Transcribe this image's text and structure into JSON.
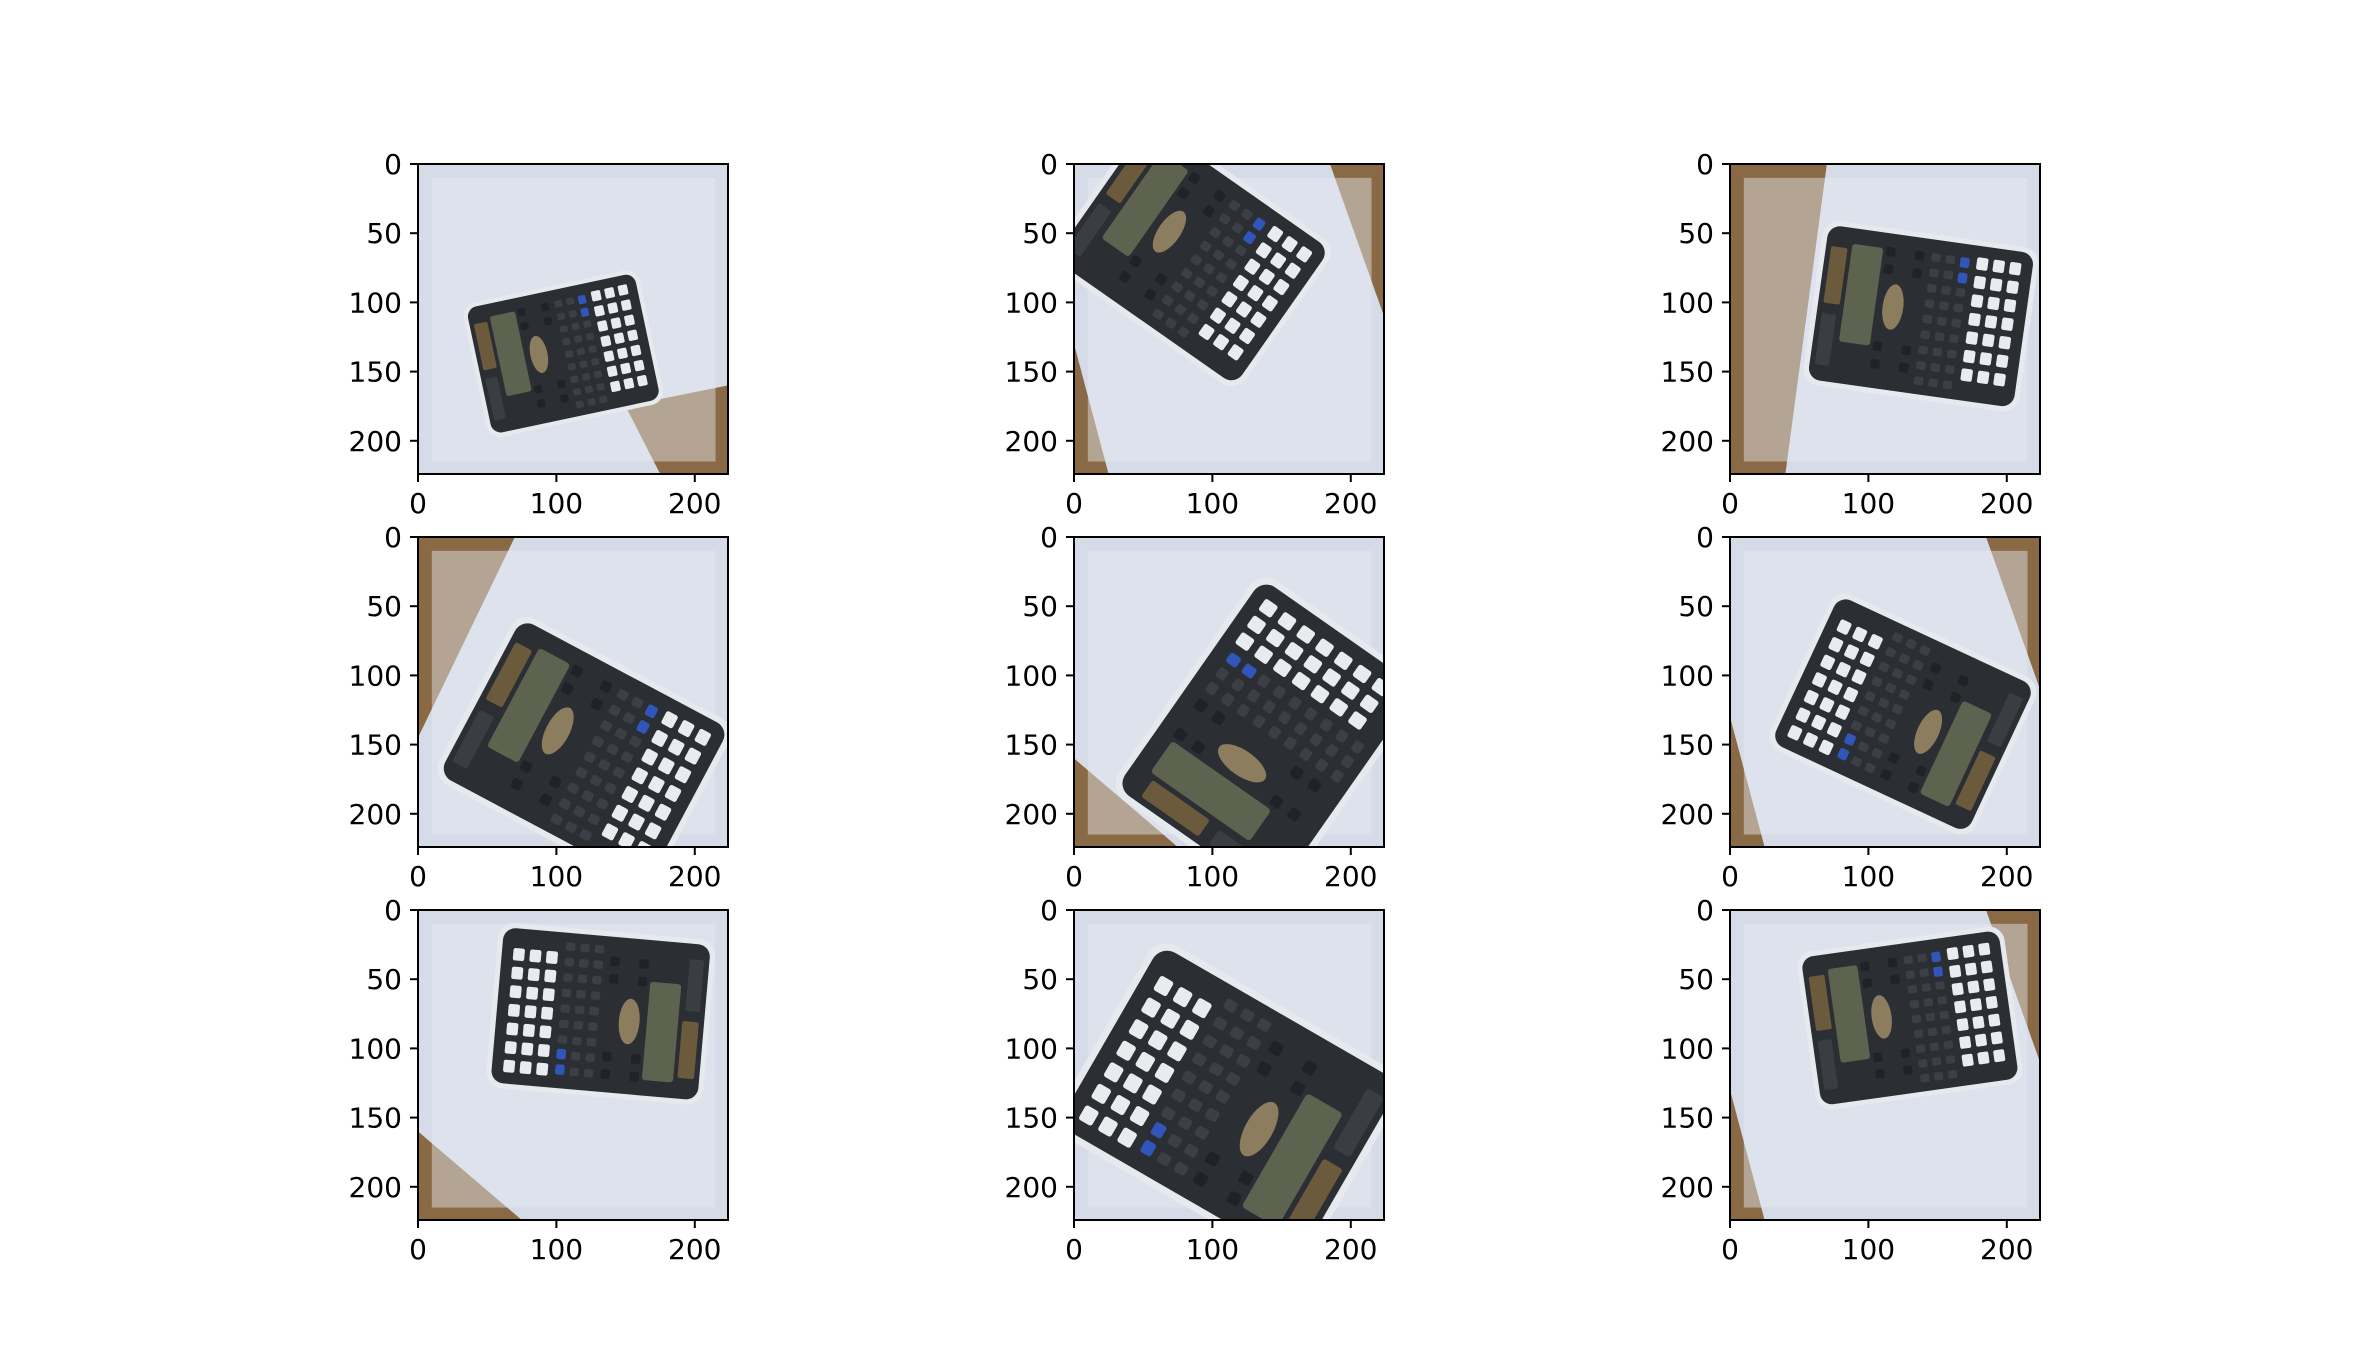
{
  "figure": {
    "rows": 3,
    "cols": 3,
    "axis": {
      "x_ticks": [
        0,
        100,
        200
      ],
      "y_ticks": [
        0,
        50,
        100,
        150,
        200
      ],
      "x_range": [
        0,
        224
      ],
      "y_range": [
        0,
        224
      ],
      "y_inverted": true
    },
    "colors": {
      "background": "#ffffff",
      "paper": "#dde2ee",
      "paper_shadow": "#c9cfdd",
      "wood": "#8a6a45",
      "calculator_body": "#2b2e33",
      "calculator_bezel": "#e8eaee",
      "screen": "#5e6350",
      "solar_panel": "#6b5a3c",
      "key_white": "#e9ecef",
      "key_dark": "#1f2226",
      "key_blue": "#2f56b8",
      "key_beige": "#8c7d5e"
    },
    "panels": [
      {
        "id": "panel-1",
        "rotation_deg": -12,
        "center": [
          105,
          137
        ],
        "scale": 0.62,
        "wood": "bottom-right"
      },
      {
        "id": "panel-2",
        "rotation_deg": 35,
        "center": [
          85,
          65
        ],
        "scale": 0.8,
        "wood": "left-and-right"
      },
      {
        "id": "panel-3",
        "rotation_deg": 8,
        "center": [
          138,
          110
        ],
        "scale": 0.75,
        "wood": "left"
      },
      {
        "id": "panel-4",
        "rotation_deg": 28,
        "center": [
          120,
          155
        ],
        "scale": 0.85,
        "wood": "top-left"
      },
      {
        "id": "panel-5",
        "rotation_deg": -55,
        "center": [
          140,
          145
        ],
        "scale": 0.92,
        "wood": "bottom-left"
      },
      {
        "id": "panel-6",
        "rotation_deg": 205,
        "center": [
          125,
          128
        ],
        "scale": 0.78,
        "wood": "left-and-right"
      },
      {
        "id": "panel-7",
        "rotation_deg": 185,
        "center": [
          132,
          75
        ],
        "scale": 0.75,
        "wood": "bottom-left"
      },
      {
        "id": "panel-8",
        "rotation_deg": 210,
        "center": [
          112,
          140
        ],
        "scale": 1.0,
        "wood": "none"
      },
      {
        "id": "panel-9",
        "rotation_deg": -8,
        "center": [
          130,
          78
        ],
        "scale": 0.72,
        "wood": "left-and-right"
      }
    ]
  }
}
